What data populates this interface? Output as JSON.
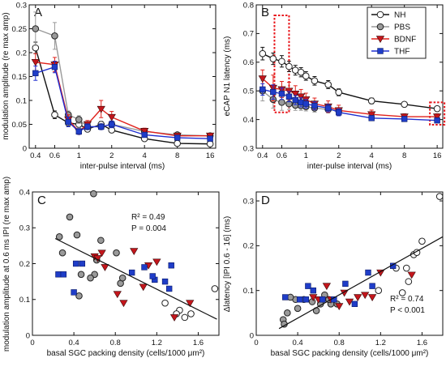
{
  "figure": {
    "panels": [
      "A",
      "B",
      "C",
      "D"
    ]
  },
  "chart_data": [
    {
      "id": "A",
      "type": "line",
      "panel_label": "A",
      "xlabel": "inter-pulse interval (ms)",
      "ylabel": "modulation amplitude (re max amp)",
      "x_scale": "log",
      "xlim": [
        0.35,
        18
      ],
      "ylim": [
        0,
        0.3
      ],
      "xticks": [
        0.4,
        0.6,
        1,
        2,
        4,
        8,
        16
      ],
      "xtick_labels": [
        "0.4",
        "0.6",
        "1",
        "2",
        "4",
        "8",
        "16"
      ],
      "yticks": [
        0,
        0.05,
        0.1,
        0.15,
        0.2,
        0.25,
        0.3
      ],
      "ytick_labels": [
        "0",
        "0.05",
        "0.1",
        "0.15",
        "0.2",
        "0.25",
        "0.3"
      ],
      "x": [
        0.4,
        0.6,
        0.8,
        1.0,
        1.2,
        1.6,
        2.0,
        4.0,
        8.0,
        16.0
      ],
      "series": [
        {
          "name": "NH",
          "marker": "circle-open",
          "line": "#111111",
          "fill": "#ffffff",
          "values": [
            0.21,
            0.07,
            0.053,
            0.05,
            0.04,
            0.05,
            0.038,
            0.02,
            0.01,
            0.009
          ],
          "err": [
            0.012,
            0.008,
            0.006,
            0.006,
            0.005,
            0.006,
            0.005,
            0.003,
            0.002,
            0.002
          ]
        },
        {
          "name": "PBS",
          "marker": "circle-gray",
          "line": "#9a9a9a",
          "fill": "#9a9a9a",
          "values": [
            0.25,
            0.235,
            0.07,
            0.06,
            0.045,
            0.045,
            0.05,
            0.035,
            0.028,
            0.026
          ],
          "err": [
            0.035,
            0.028,
            0.008,
            0.008,
            0.006,
            0.006,
            0.007,
            0.004,
            0.003,
            0.003
          ]
        },
        {
          "name": "BDNF",
          "marker": "triangle-down",
          "line": "#e0221c",
          "fill": "#c4161c",
          "values": [
            0.18,
            0.175,
            0.06,
            0.035,
            0.05,
            0.082,
            0.065,
            0.036,
            0.026,
            0.026
          ],
          "err": [
            0.018,
            0.015,
            0.01,
            0.006,
            0.008,
            0.018,
            0.012,
            0.006,
            0.004,
            0.004
          ]
        },
        {
          "name": "THF",
          "marker": "square",
          "line": "#1f2fd0",
          "fill": "#1f3dc8",
          "values": [
            0.157,
            0.17,
            0.055,
            0.035,
            0.045,
            0.045,
            0.05,
            0.028,
            0.022,
            0.02
          ],
          "err": [
            0.015,
            0.012,
            0.01,
            0.006,
            0.006,
            0.006,
            0.007,
            0.004,
            0.003,
            0.003
          ]
        }
      ]
    },
    {
      "id": "B",
      "type": "line",
      "panel_label": "B",
      "xlabel": "inter-pulse interval (ms)",
      "ylabel": "eCAP N1 latency (ms)",
      "x_scale": "log",
      "xlim": [
        0.35,
        18
      ],
      "ylim": [
        0.3,
        0.8
      ],
      "xticks": [
        0.4,
        0.6,
        1,
        2,
        4,
        8,
        16
      ],
      "xtick_labels": [
        "0.4",
        "0.6",
        "1",
        "2",
        "4",
        "8",
        "16"
      ],
      "yticks": [
        0.3,
        0.4,
        0.5,
        0.6,
        0.7,
        0.8
      ],
      "ytick_labels": [
        "0.3",
        "0.4",
        "0.5",
        "0.6",
        "0.7",
        "0.8"
      ],
      "legend": {
        "position": "top-right",
        "entries": [
          "NH",
          "PBS",
          "BDNF",
          "THF"
        ]
      },
      "highlight_boxes_at_x": [
        0.6,
        16
      ],
      "x": [
        0.4,
        0.5,
        0.6,
        0.7,
        0.8,
        0.9,
        1.0,
        1.2,
        1.6,
        2.0,
        4.0,
        8.0,
        16.0
      ],
      "series": [
        {
          "name": "NH",
          "marker": "circle-open",
          "line": "#111111",
          "fill": "#ffffff",
          "values": [
            0.63,
            0.612,
            0.603,
            0.585,
            0.572,
            0.565,
            0.552,
            0.535,
            0.522,
            0.495,
            0.465,
            0.453,
            0.438
          ],
          "err": [
            0.022,
            0.02,
            0.02,
            0.018,
            0.017,
            0.016,
            0.015,
            0.015,
            0.014,
            0.012,
            0.01,
            0.008,
            0.008
          ]
        },
        {
          "name": "PBS",
          "marker": "circle-gray",
          "line": "#9a9a9a",
          "fill": "#9a9a9a",
          "values": [
            0.5,
            0.47,
            0.46,
            0.455,
            0.45,
            0.448,
            0.445,
            0.44,
            0.435,
            0.43,
            null,
            null,
            null
          ],
          "err": [
            0.035,
            0.03,
            0.028,
            0.02,
            0.018,
            0.016,
            0.015,
            0.014,
            0.012,
            0.01,
            null,
            null,
            null
          ]
        },
        {
          "name": "BDNF",
          "marker": "triangle-down",
          "line": "#e0221c",
          "fill": "#c4161c",
          "values": [
            0.543,
            0.51,
            0.505,
            0.5,
            0.49,
            0.48,
            0.47,
            0.455,
            0.445,
            0.432,
            0.418,
            0.41,
            0.41
          ],
          "err": [
            0.03,
            0.045,
            0.028,
            0.03,
            0.028,
            0.025,
            0.022,
            0.02,
            0.02,
            0.018,
            0.015,
            0.01,
            0.01
          ]
        },
        {
          "name": "THF",
          "marker": "square",
          "line": "#1f2fd0",
          "fill": "#1f3dc8",
          "values": [
            0.505,
            0.496,
            0.49,
            0.48,
            0.468,
            0.46,
            0.455,
            0.448,
            0.44,
            0.425,
            0.405,
            0.402,
            0.397
          ],
          "err": [
            0.02,
            0.025,
            0.02,
            0.018,
            0.016,
            0.016,
            0.015,
            0.014,
            0.013,
            0.012,
            0.008,
            0.008,
            0.008
          ]
        }
      ]
    },
    {
      "id": "C",
      "type": "scatter",
      "panel_label": "C",
      "xlabel": "basal SGC packing density (cells/1000 μm²)",
      "ylabel": "modulation amplitude at 0.6 ms IPI (re max amp)",
      "xlim": [
        0,
        1.8
      ],
      "ylim": [
        0,
        0.4
      ],
      "xticks": [
        0,
        0.4,
        0.8,
        1.2,
        1.6
      ],
      "xtick_labels": [
        "0",
        "0.4",
        "0.8",
        "1.2",
        "1.6"
      ],
      "yticks": [
        0,
        0.1,
        0.2,
        0.3,
        0.4
      ],
      "ytick_labels": [
        "0",
        "0.1",
        "0.2",
        "0.3",
        "0.4"
      ],
      "annotation_lines": [
        "R² = 0.49",
        "P = 0.004"
      ],
      "fit_line": {
        "x": [
          0.22,
          1.78
        ],
        "y": [
          0.27,
          0.045
        ]
      },
      "series": [
        {
          "name": "NH",
          "marker": "circle-open",
          "fill": "#ffffff",
          "points": [
            [
              1.28,
              0.09
            ],
            [
              1.42,
              0.07
            ],
            [
              1.47,
              0.05
            ],
            [
              1.53,
              0.06
            ],
            [
              1.39,
              0.06
            ],
            [
              1.76,
              0.13
            ]
          ]
        },
        {
          "name": "PBS",
          "marker": "circle-gray",
          "fill": "#9a9a9a",
          "points": [
            [
              0.59,
              0.395
            ],
            [
              0.36,
              0.33
            ],
            [
              0.26,
              0.275
            ],
            [
              0.43,
              0.28
            ],
            [
              0.66,
              0.265
            ],
            [
              0.29,
              0.23
            ],
            [
              0.45,
              0.11
            ],
            [
              0.6,
              0.17
            ],
            [
              0.85,
              0.145
            ],
            [
              0.87,
              0.16
            ],
            [
              0.81,
              0.23
            ],
            [
              0.62,
              0.21
            ],
            [
              0.56,
              0.16
            ],
            [
              0.47,
              0.17
            ]
          ]
        },
        {
          "name": "BDNF",
          "marker": "triangle-down",
          "fill": "#c4161c",
          "points": [
            [
              0.67,
              0.23
            ],
            [
              0.6,
              0.22
            ],
            [
              0.7,
              0.19
            ],
            [
              0.63,
              0.215
            ],
            [
              0.98,
              0.235
            ],
            [
              1.12,
              0.195
            ],
            [
              1.2,
              0.205
            ],
            [
              0.82,
              0.115
            ],
            [
              0.88,
              0.09
            ],
            [
              1.07,
              0.135
            ],
            [
              1.52,
              0.09
            ],
            [
              1.37,
              0.05
            ]
          ]
        },
        {
          "name": "THF",
          "marker": "square",
          "fill": "#1f3dc8",
          "points": [
            [
              0.25,
              0.17
            ],
            [
              0.42,
              0.2
            ],
            [
              0.48,
              0.2
            ],
            [
              0.3,
              0.17
            ],
            [
              0.4,
              0.12
            ],
            [
              1.18,
              0.155
            ],
            [
              1.28,
              0.15
            ],
            [
              1.34,
              0.195
            ],
            [
              0.96,
              0.175
            ],
            [
              1.08,
              0.19
            ],
            [
              1.16,
              0.165
            ],
            [
              1.32,
              0.13
            ]
          ]
        }
      ]
    },
    {
      "id": "D",
      "type": "scatter",
      "panel_label": "D",
      "xlabel": "basal SGC packing density (cells/1000 μm²)",
      "ylabel": "Δlatency [IPI 0.6 - 16] (ms)",
      "xlim": [
        0,
        1.8
      ],
      "ylim": [
        0,
        0.32
      ],
      "xticks": [
        0,
        0.4,
        0.8,
        1.2,
        1.6
      ],
      "xtick_labels": [
        "0",
        "0.4",
        "0.8",
        "1.2",
        "1.6"
      ],
      "yticks": [
        0,
        0.1,
        0.2,
        0.3
      ],
      "ytick_labels": [
        "0",
        "0.1",
        "0.2",
        "0.3"
      ],
      "annotation_lines": [
        "R² = 0.74",
        "P < 0.001"
      ],
      "fit_line": {
        "x": [
          0.22,
          1.8
        ],
        "y": [
          0.015,
          0.22
        ]
      },
      "series": [
        {
          "name": "NH",
          "marker": "circle-open",
          "fill": "#ffffff",
          "points": [
            [
              1.35,
              0.15
            ],
            [
              1.45,
              0.15
            ],
            [
              1.52,
              0.18
            ],
            [
              1.55,
              0.185
            ],
            [
              1.6,
              0.21
            ],
            [
              1.47,
              0.12
            ],
            [
              1.41,
              0.095
            ],
            [
              1.77,
              0.31
            ],
            [
              1.18,
              0.1
            ]
          ]
        },
        {
          "name": "PBS",
          "marker": "circle-gray",
          "fill": "#9a9a9a",
          "points": [
            [
              0.26,
              0.035
            ],
            [
              0.27,
              0.025
            ],
            [
              0.4,
              0.06
            ],
            [
              0.46,
              0.08
            ],
            [
              0.38,
              0.08
            ],
            [
              0.54,
              0.075
            ],
            [
              0.58,
              0.055
            ],
            [
              0.62,
              0.07
            ],
            [
              0.72,
              0.07
            ],
            [
              0.78,
              0.07
            ],
            [
              0.7,
              0.08
            ],
            [
              0.3,
              0.05
            ],
            [
              0.33,
              0.085
            ],
            [
              0.66,
              0.09
            ]
          ]
        },
        {
          "name": "BDNF",
          "marker": "triangle-down",
          "fill": "#c4161c",
          "points": [
            [
              0.6,
              0.08
            ],
            [
              0.72,
              0.08
            ],
            [
              0.85,
              0.095
            ],
            [
              0.98,
              0.085
            ],
            [
              1.05,
              0.09
            ],
            [
              1.12,
              0.085
            ],
            [
              1.2,
              0.14
            ],
            [
              1.5,
              0.135
            ],
            [
              0.9,
              0.075
            ],
            [
              0.8,
              0.065
            ],
            [
              0.68,
              0.11
            ],
            [
              0.55,
              0.085
            ]
          ]
        },
        {
          "name": "THF",
          "marker": "square",
          "fill": "#1f3dc8",
          "points": [
            [
              0.28,
              0.085
            ],
            [
              0.42,
              0.08
            ],
            [
              0.48,
              0.08
            ],
            [
              0.5,
              0.11
            ],
            [
              0.55,
              0.1
            ],
            [
              0.75,
              0.08
            ],
            [
              0.86,
              0.115
            ],
            [
              1.08,
              0.14
            ],
            [
              1.12,
              0.11
            ],
            [
              1.32,
              0.155
            ],
            [
              0.64,
              0.08
            ],
            [
              0.95,
              0.07
            ]
          ]
        }
      ]
    }
  ]
}
